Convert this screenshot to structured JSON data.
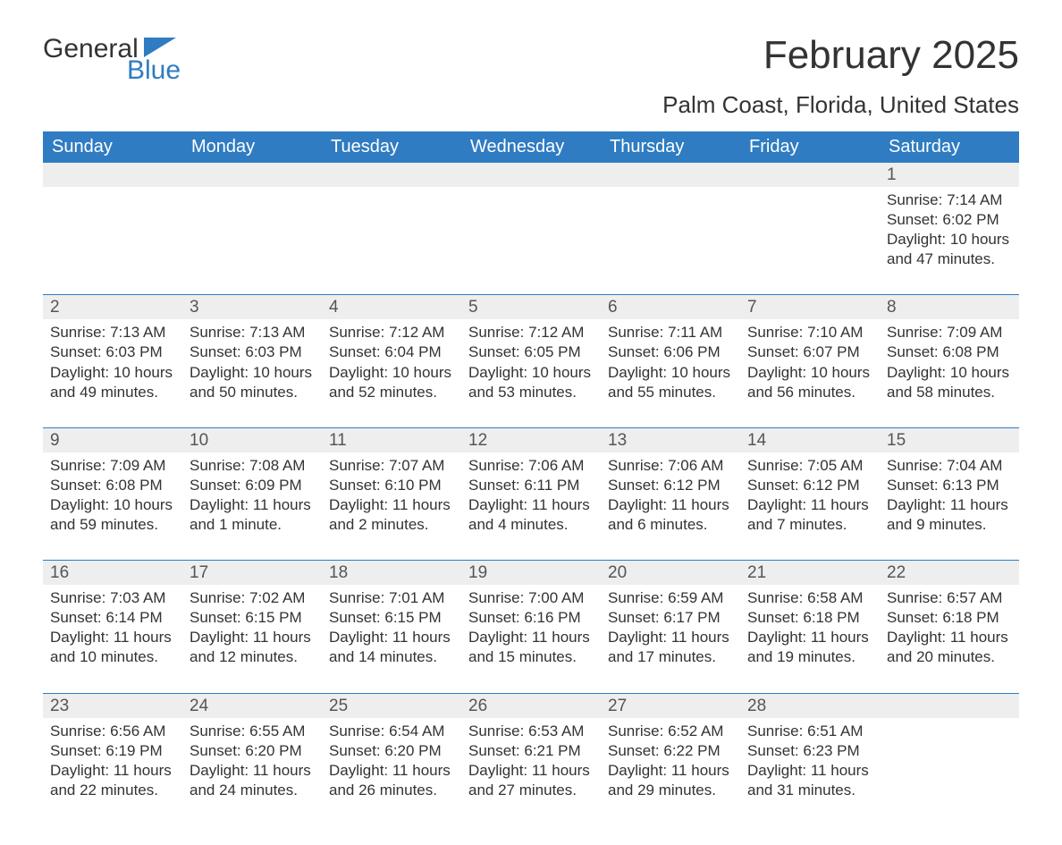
{
  "brand": {
    "word1": "General",
    "word2": "Blue",
    "accent": "#2f7cc2"
  },
  "title": "February 2025",
  "location": "Palm Coast, Florida, United States",
  "day_headers": [
    "Sunday",
    "Monday",
    "Tuesday",
    "Wednesday",
    "Thursday",
    "Friday",
    "Saturday"
  ],
  "colors": {
    "header_bg": "#2f7cc2",
    "header_text": "#ffffff",
    "daynum_bg": "#eeeeee",
    "week_border": "#2f7cc2",
    "text": "#333333"
  },
  "weeks": [
    [
      null,
      null,
      null,
      null,
      null,
      null,
      {
        "n": "1",
        "sunrise": "Sunrise: 7:14 AM",
        "sunset": "Sunset: 6:02 PM",
        "daylight": "Daylight: 10 hours and 47 minutes."
      }
    ],
    [
      {
        "n": "2",
        "sunrise": "Sunrise: 7:13 AM",
        "sunset": "Sunset: 6:03 PM",
        "daylight": "Daylight: 10 hours and 49 minutes."
      },
      {
        "n": "3",
        "sunrise": "Sunrise: 7:13 AM",
        "sunset": "Sunset: 6:03 PM",
        "daylight": "Daylight: 10 hours and 50 minutes."
      },
      {
        "n": "4",
        "sunrise": "Sunrise: 7:12 AM",
        "sunset": "Sunset: 6:04 PM",
        "daylight": "Daylight: 10 hours and 52 minutes."
      },
      {
        "n": "5",
        "sunrise": "Sunrise: 7:12 AM",
        "sunset": "Sunset: 6:05 PM",
        "daylight": "Daylight: 10 hours and 53 minutes."
      },
      {
        "n": "6",
        "sunrise": "Sunrise: 7:11 AM",
        "sunset": "Sunset: 6:06 PM",
        "daylight": "Daylight: 10 hours and 55 minutes."
      },
      {
        "n": "7",
        "sunrise": "Sunrise: 7:10 AM",
        "sunset": "Sunset: 6:07 PM",
        "daylight": "Daylight: 10 hours and 56 minutes."
      },
      {
        "n": "8",
        "sunrise": "Sunrise: 7:09 AM",
        "sunset": "Sunset: 6:08 PM",
        "daylight": "Daylight: 10 hours and 58 minutes."
      }
    ],
    [
      {
        "n": "9",
        "sunrise": "Sunrise: 7:09 AM",
        "sunset": "Sunset: 6:08 PM",
        "daylight": "Daylight: 10 hours and 59 minutes."
      },
      {
        "n": "10",
        "sunrise": "Sunrise: 7:08 AM",
        "sunset": "Sunset: 6:09 PM",
        "daylight": "Daylight: 11 hours and 1 minute."
      },
      {
        "n": "11",
        "sunrise": "Sunrise: 7:07 AM",
        "sunset": "Sunset: 6:10 PM",
        "daylight": "Daylight: 11 hours and 2 minutes."
      },
      {
        "n": "12",
        "sunrise": "Sunrise: 7:06 AM",
        "sunset": "Sunset: 6:11 PM",
        "daylight": "Daylight: 11 hours and 4 minutes."
      },
      {
        "n": "13",
        "sunrise": "Sunrise: 7:06 AM",
        "sunset": "Sunset: 6:12 PM",
        "daylight": "Daylight: 11 hours and 6 minutes."
      },
      {
        "n": "14",
        "sunrise": "Sunrise: 7:05 AM",
        "sunset": "Sunset: 6:12 PM",
        "daylight": "Daylight: 11 hours and 7 minutes."
      },
      {
        "n": "15",
        "sunrise": "Sunrise: 7:04 AM",
        "sunset": "Sunset: 6:13 PM",
        "daylight": "Daylight: 11 hours and 9 minutes."
      }
    ],
    [
      {
        "n": "16",
        "sunrise": "Sunrise: 7:03 AM",
        "sunset": "Sunset: 6:14 PM",
        "daylight": "Daylight: 11 hours and 10 minutes."
      },
      {
        "n": "17",
        "sunrise": "Sunrise: 7:02 AM",
        "sunset": "Sunset: 6:15 PM",
        "daylight": "Daylight: 11 hours and 12 minutes."
      },
      {
        "n": "18",
        "sunrise": "Sunrise: 7:01 AM",
        "sunset": "Sunset: 6:15 PM",
        "daylight": "Daylight: 11 hours and 14 minutes."
      },
      {
        "n": "19",
        "sunrise": "Sunrise: 7:00 AM",
        "sunset": "Sunset: 6:16 PM",
        "daylight": "Daylight: 11 hours and 15 minutes."
      },
      {
        "n": "20",
        "sunrise": "Sunrise: 6:59 AM",
        "sunset": "Sunset: 6:17 PM",
        "daylight": "Daylight: 11 hours and 17 minutes."
      },
      {
        "n": "21",
        "sunrise": "Sunrise: 6:58 AM",
        "sunset": "Sunset: 6:18 PM",
        "daylight": "Daylight: 11 hours and 19 minutes."
      },
      {
        "n": "22",
        "sunrise": "Sunrise: 6:57 AM",
        "sunset": "Sunset: 6:18 PM",
        "daylight": "Daylight: 11 hours and 20 minutes."
      }
    ],
    [
      {
        "n": "23",
        "sunrise": "Sunrise: 6:56 AM",
        "sunset": "Sunset: 6:19 PM",
        "daylight": "Daylight: 11 hours and 22 minutes."
      },
      {
        "n": "24",
        "sunrise": "Sunrise: 6:55 AM",
        "sunset": "Sunset: 6:20 PM",
        "daylight": "Daylight: 11 hours and 24 minutes."
      },
      {
        "n": "25",
        "sunrise": "Sunrise: 6:54 AM",
        "sunset": "Sunset: 6:20 PM",
        "daylight": "Daylight: 11 hours and 26 minutes."
      },
      {
        "n": "26",
        "sunrise": "Sunrise: 6:53 AM",
        "sunset": "Sunset: 6:21 PM",
        "daylight": "Daylight: 11 hours and 27 minutes."
      },
      {
        "n": "27",
        "sunrise": "Sunrise: 6:52 AM",
        "sunset": "Sunset: 6:22 PM",
        "daylight": "Daylight: 11 hours and 29 minutes."
      },
      {
        "n": "28",
        "sunrise": "Sunrise: 6:51 AM",
        "sunset": "Sunset: 6:23 PM",
        "daylight": "Daylight: 11 hours and 31 minutes."
      },
      null
    ]
  ]
}
